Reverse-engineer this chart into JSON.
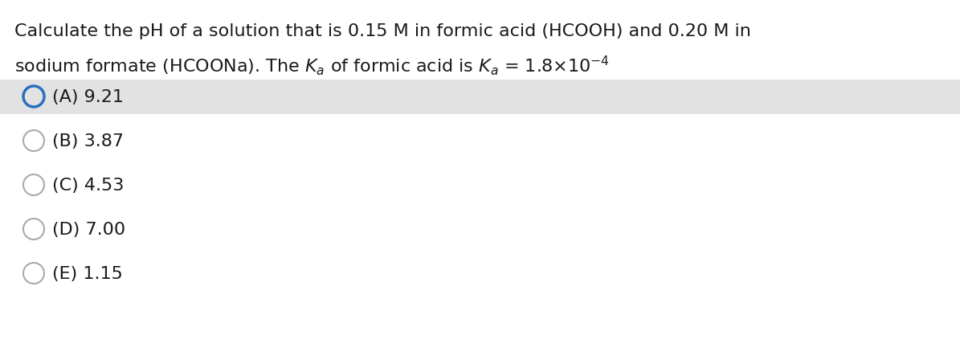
{
  "question_line1": "Calculate the pH of a solution that is 0.15 M in formic acid (HCOOH) and 0.20 M in",
  "question_line2": "sodium formate (HCOONa). The $K_a$ of formic acid is $K_a$ = 1.8×10$^{-4}$",
  "options": [
    {
      "label": "(A) 9.21",
      "selected": true
    },
    {
      "label": "(B) 3.87",
      "selected": false
    },
    {
      "label": "(C) 4.53",
      "selected": false
    },
    {
      "label": "(D) 7.00",
      "selected": false
    },
    {
      "label": "(E) 1.15",
      "selected": false
    }
  ],
  "bg_color": "#ffffff",
  "highlight_color": "#e2e2e2",
  "text_color": "#1a1a1a",
  "circle_color_selected": "#2a6fbd",
  "circle_color_unselected": "#aaaaaa",
  "question_fontsize": 16,
  "option_fontsize": 16,
  "fig_width": 11.95,
  "fig_height": 4.39,
  "dpi": 100
}
